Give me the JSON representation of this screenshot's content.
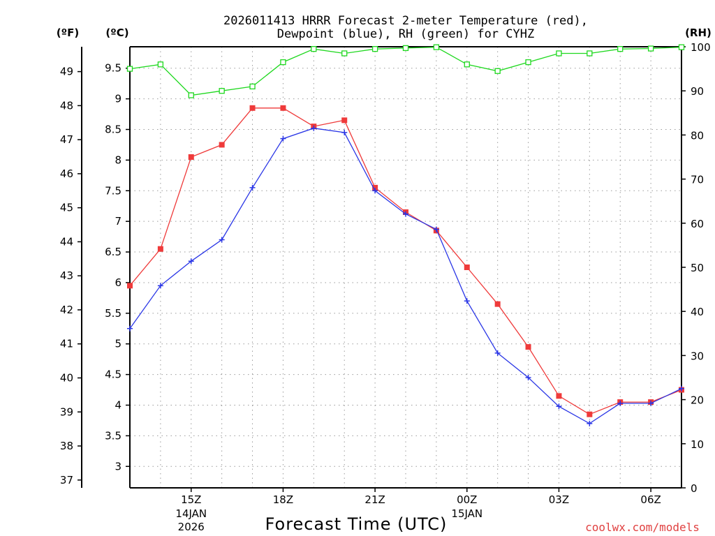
{
  "colors": {
    "temp": "#ef3a3a",
    "dewpoint": "#2a36e6",
    "rh": "#1ed81e",
    "grid": "#9a9a9a",
    "credit": "#e04040"
  },
  "chart_data": {
    "type": "line",
    "title_line1": "2026011413 HRRR Forecast 2-meter Temperature (red),",
    "title_line2": "Dewpoint (blue), RH (green) for CYHZ",
    "xlabel": "Forecast Time (UTC)",
    "credit": "coolwx.com/models",
    "left_unit_f": "(ºF)",
    "left_unit_c": "(ºC)",
    "right_unit": "(RH)",
    "x_hours": [
      0,
      1,
      2,
      3,
      4,
      5,
      6,
      7,
      8,
      9,
      10,
      11,
      12,
      13,
      14,
      15,
      16,
      17,
      18
    ],
    "x_tick_hours": [
      2,
      5,
      8,
      11,
      14,
      17
    ],
    "x_tick_labels": [
      "15Z",
      "18Z",
      "21Z",
      "00Z",
      "03Z",
      "06Z"
    ],
    "date_labels": [
      {
        "hour": 2,
        "line1": "14JAN",
        "line2": "2026"
      },
      {
        "hour": 11,
        "line1": "15JAN",
        "line2": ""
      }
    ],
    "celsius_ticks": [
      "3",
      "3.5",
      "4",
      "4.5",
      "5",
      "5.5",
      "6",
      "6.5",
      "7",
      "7.5",
      "8",
      "8.5",
      "9",
      "9.5"
    ],
    "fahrenheit_ticks": [
      "37",
      "38",
      "39",
      "40",
      "41",
      "42",
      "43",
      "44",
      "45",
      "46",
      "47",
      "48",
      "49"
    ],
    "rh_ticks": [
      "0",
      "10",
      "20",
      "30",
      "40",
      "50",
      "60",
      "70",
      "80",
      "90",
      "100"
    ],
    "ylim_c": [
      2.65,
      9.85
    ],
    "ylim_rh": [
      0,
      100
    ],
    "series": [
      {
        "name": "Temperature",
        "unit": "C",
        "color": "#ef3a3a",
        "marker": "filled-square",
        "values": [
          5.95,
          6.55,
          8.05,
          8.25,
          8.85,
          8.85,
          8.55,
          8.65,
          7.55,
          7.15,
          6.85,
          6.25,
          5.65,
          4.95,
          4.15,
          3.85,
          4.05,
          4.05,
          4.25
        ]
      },
      {
        "name": "Dewpoint",
        "unit": "C",
        "color": "#2a36e6",
        "marker": "plus",
        "values": [
          5.25,
          5.95,
          6.35,
          6.7,
          7.55,
          8.35,
          8.52,
          8.45,
          7.5,
          7.12,
          6.87,
          5.7,
          4.85,
          4.45,
          3.98,
          3.7,
          4.03,
          4.03,
          4.27
        ]
      },
      {
        "name": "RH",
        "unit": "%",
        "color": "#1ed81e",
        "marker": "open-square",
        "values": [
          95,
          96,
          89,
          90,
          91,
          96.5,
          99.5,
          98.5,
          99.5,
          99.7,
          99.9,
          96,
          94.5,
          96.5,
          98.5,
          98.5,
          99.5,
          99.6,
          99.9
        ]
      }
    ]
  }
}
